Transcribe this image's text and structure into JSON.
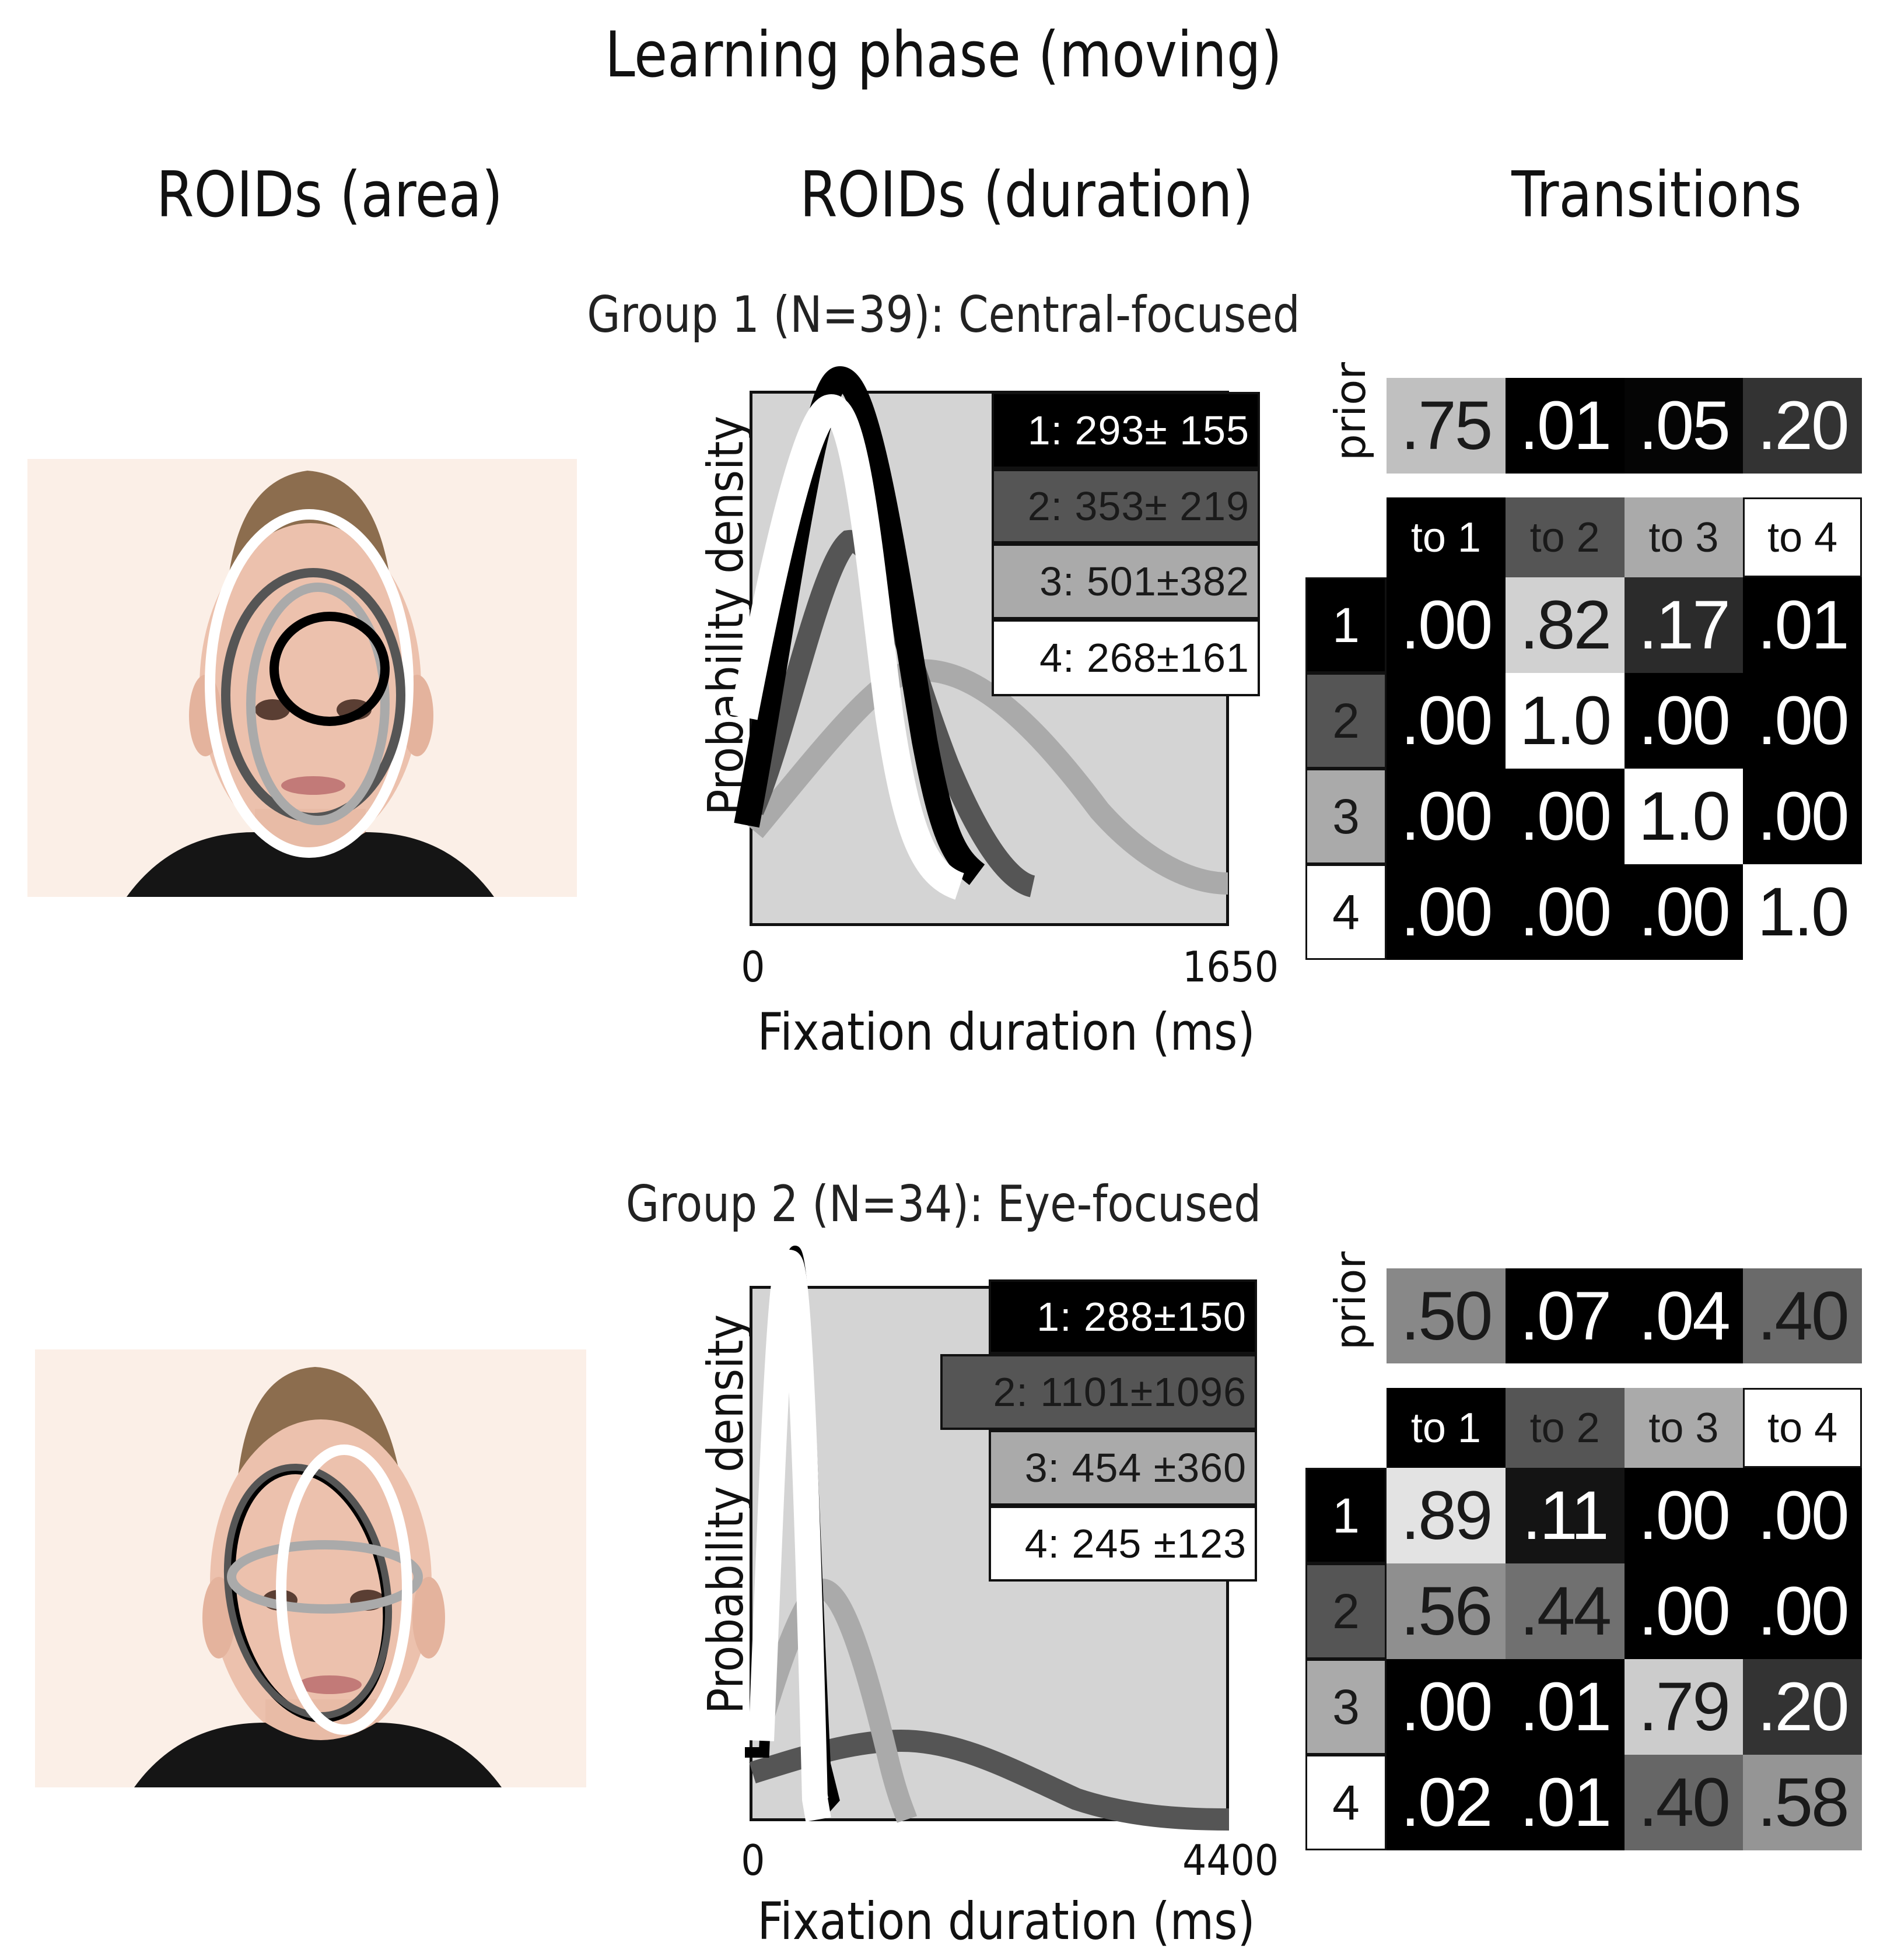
{
  "figure": {
    "title": "Learning phase (moving)",
    "columns": [
      "ROIDs (area)",
      "ROIDs (duration)",
      "Transitions"
    ]
  },
  "groups": [
    {
      "title": "Group 1 (N=39): Central-focused",
      "duration_plot": {
        "ylabel": "Probability density",
        "xlabel": "Fixation duration (ms)",
        "xmin_label": "0",
        "xmax_label": "1650",
        "legend": [
          {
            "label": "1: 293± 155",
            "bg": "#000000",
            "fg": "#ffffff"
          },
          {
            "label": "2: 353± 219",
            "bg": "#555555",
            "fg": "#1a1a1a"
          },
          {
            "label": "3: 501±382",
            "bg": "#aaaaaa",
            "fg": "#1a1a1a"
          },
          {
            "label": "4: 268±161",
            "bg": "#ffffff",
            "fg": "#111111"
          }
        ]
      },
      "transitions": {
        "prior_label": "prior",
        "prior": [
          {
            "v": ".75",
            "bg": "#c0c0c0",
            "fg": "#1a1a1a"
          },
          {
            "v": ".01",
            "bg": "#000000",
            "fg": "#ffffff"
          },
          {
            "v": ".05",
            "bg": "#050505",
            "fg": "#ffffff"
          },
          {
            "v": ".20",
            "bg": "#333333",
            "fg": "#ffffff"
          }
        ],
        "headers": [
          {
            "v": "to 1",
            "bg": "#000000",
            "fg": "#ffffff"
          },
          {
            "v": "to 2",
            "bg": "#555555",
            "fg": "#1a1a1a"
          },
          {
            "v": "to 3",
            "bg": "#aaaaaa",
            "fg": "#1a1a1a"
          },
          {
            "v": "to 4",
            "bg": "#ffffff",
            "fg": "#111111"
          }
        ],
        "rows": [
          {
            "label": {
              "v": "1",
              "bg": "#000000",
              "fg": "#ffffff"
            },
            "cells": [
              {
                "v": ".00",
                "bg": "#000000",
                "fg": "#ffffff"
              },
              {
                "v": ".82",
                "bg": "#d1d1d1",
                "fg": "#1a1a1a"
              },
              {
                "v": ".17",
                "bg": "#2b2b2b",
                "fg": "#ffffff"
              },
              {
                "v": ".01",
                "bg": "#000000",
                "fg": "#ffffff"
              }
            ]
          },
          {
            "label": {
              "v": "2",
              "bg": "#555555",
              "fg": "#1a1a1a"
            },
            "cells": [
              {
                "v": ".00",
                "bg": "#000000",
                "fg": "#ffffff"
              },
              {
                "v": "1.0",
                "bg": "#ffffff",
                "fg": "#111111"
              },
              {
                "v": ".00",
                "bg": "#000000",
                "fg": "#ffffff"
              },
              {
                "v": ".00",
                "bg": "#000000",
                "fg": "#ffffff"
              }
            ]
          },
          {
            "label": {
              "v": "3",
              "bg": "#aaaaaa",
              "fg": "#1a1a1a"
            },
            "cells": [
              {
                "v": ".00",
                "bg": "#000000",
                "fg": "#ffffff"
              },
              {
                "v": ".00",
                "bg": "#000000",
                "fg": "#ffffff"
              },
              {
                "v": "1.0",
                "bg": "#ffffff",
                "fg": "#111111"
              },
              {
                "v": ".00",
                "bg": "#000000",
                "fg": "#ffffff"
              }
            ]
          },
          {
            "label": {
              "v": "4",
              "bg": "#ffffff",
              "fg": "#111111"
            },
            "cells": [
              {
                "v": ".00",
                "bg": "#000000",
                "fg": "#ffffff"
              },
              {
                "v": ".00",
                "bg": "#000000",
                "fg": "#ffffff"
              },
              {
                "v": ".00",
                "bg": "#000000",
                "fg": "#ffffff"
              },
              {
                "v": "1.0",
                "bg": "#ffffff",
                "fg": "#111111"
              }
            ]
          }
        ]
      }
    },
    {
      "title": "Group 2 (N=34): Eye-focused",
      "duration_plot": {
        "ylabel": "Probability density",
        "xlabel": "Fixation duration (ms)",
        "xmin_label": "0",
        "xmax_label": "4400",
        "legend": [
          {
            "label": "1: 288±150",
            "bg": "#000000",
            "fg": "#ffffff"
          },
          {
            "label": "2: 1101±1096",
            "bg": "#555555",
            "fg": "#1a1a1a"
          },
          {
            "label": "3: 454 ±360",
            "bg": "#aaaaaa",
            "fg": "#1a1a1a"
          },
          {
            "label": "4: 245 ±123",
            "bg": "#ffffff",
            "fg": "#111111"
          }
        ]
      },
      "transitions": {
        "prior_label": "prior",
        "prior": [
          {
            "v": ".50",
            "bg": "#888888",
            "fg": "#1a1a1a"
          },
          {
            "v": ".07",
            "bg": "#000000",
            "fg": "#ffffff"
          },
          {
            "v": ".04",
            "bg": "#000000",
            "fg": "#ffffff"
          },
          {
            "v": ".40",
            "bg": "#6a6a6a",
            "fg": "#1a1a1a"
          }
        ],
        "headers": [
          {
            "v": "to 1",
            "bg": "#000000",
            "fg": "#ffffff"
          },
          {
            "v": "to 2",
            "bg": "#555555",
            "fg": "#1a1a1a"
          },
          {
            "v": "to 3",
            "bg": "#aaaaaa",
            "fg": "#1a1a1a"
          },
          {
            "v": "to 4",
            "bg": "#ffffff",
            "fg": "#111111"
          }
        ],
        "rows": [
          {
            "label": {
              "v": "1",
              "bg": "#000000",
              "fg": "#ffffff"
            },
            "cells": [
              {
                "v": ".89",
                "bg": "#e3e3e3",
                "fg": "#1a1a1a"
              },
              {
                "v": ".11",
                "bg": "#141414",
                "fg": "#ffffff"
              },
              {
                "v": ".00",
                "bg": "#000000",
                "fg": "#ffffff"
              },
              {
                "v": ".00",
                "bg": "#000000",
                "fg": "#ffffff"
              }
            ]
          },
          {
            "label": {
              "v": "2",
              "bg": "#555555",
              "fg": "#1a1a1a"
            },
            "cells": [
              {
                "v": ".56",
                "bg": "#8f8f8f",
                "fg": "#1a1a1a"
              },
              {
                "v": ".44",
                "bg": "#707070",
                "fg": "#1a1a1a"
              },
              {
                "v": ".00",
                "bg": "#000000",
                "fg": "#ffffff"
              },
              {
                "v": ".00",
                "bg": "#000000",
                "fg": "#ffffff"
              }
            ]
          },
          {
            "label": {
              "v": "3",
              "bg": "#aaaaaa",
              "fg": "#1a1a1a"
            },
            "cells": [
              {
                "v": ".00",
                "bg": "#000000",
                "fg": "#ffffff"
              },
              {
                "v": ".01",
                "bg": "#000000",
                "fg": "#ffffff"
              },
              {
                "v": ".79",
                "bg": "#cccccc",
                "fg": "#1a1a1a"
              },
              {
                "v": ".20",
                "bg": "#333333",
                "fg": "#ffffff"
              }
            ]
          },
          {
            "label": {
              "v": "4",
              "bg": "#ffffff",
              "fg": "#111111"
            },
            "cells": [
              {
                "v": ".02",
                "bg": "#000000",
                "fg": "#ffffff"
              },
              {
                "v": ".01",
                "bg": "#000000",
                "fg": "#ffffff"
              },
              {
                "v": ".40",
                "bg": "#666666",
                "fg": "#1a1a1a"
              },
              {
                "v": ".58",
                "bg": "#959595",
                "fg": "#1a1a1a"
              }
            ]
          }
        ]
      }
    }
  ],
  "chart_data": [
    {
      "type": "line",
      "title": "Group 1 (N=39): Central-focused — ROIDs (duration)",
      "xlabel": "Fixation duration (ms)",
      "ylabel": "Probability density",
      "xlim": [
        0,
        1650
      ],
      "x_tick_labels": [
        "0",
        "1650"
      ],
      "grid": false,
      "legend_position": "upper right",
      "series": [
        {
          "name": "1",
          "color": "#000000",
          "mean_ms": 293,
          "sd_ms": 155,
          "peak_x_ms": 250,
          "relative_peak": 1.0
        },
        {
          "name": "2",
          "color": "#555555",
          "mean_ms": 353,
          "sd_ms": 219,
          "peak_x_ms": 300,
          "relative_peak": 0.71
        },
        {
          "name": "3",
          "color": "#aaaaaa",
          "mean_ms": 501,
          "sd_ms": 382,
          "peak_x_ms": 450,
          "relative_peak": 0.41
        },
        {
          "name": "4",
          "color": "#ffffff",
          "mean_ms": 268,
          "sd_ms": 161,
          "peak_x_ms": 240,
          "relative_peak": 0.95
        }
      ]
    },
    {
      "type": "line",
      "title": "Group 2 (N=34): Eye-focused — ROIDs (duration)",
      "xlabel": "Fixation duration (ms)",
      "ylabel": "Probability density",
      "xlim": [
        0,
        4400
      ],
      "x_tick_labels": [
        "0",
        "4400"
      ],
      "grid": false,
      "legend_position": "upper right",
      "series": [
        {
          "name": "1",
          "color": "#000000",
          "mean_ms": 288,
          "sd_ms": 150,
          "relative_peak": 1.0
        },
        {
          "name": "2",
          "color": "#555555",
          "mean_ms": 1101,
          "sd_ms": 1096,
          "relative_peak": 0.1
        },
        {
          "name": "3",
          "color": "#aaaaaa",
          "mean_ms": 454,
          "sd_ms": 360,
          "relative_peak": 0.35
        },
        {
          "name": "4",
          "color": "#ffffff",
          "mean_ms": 245,
          "sd_ms": 123,
          "relative_peak": 1.0
        }
      ]
    },
    {
      "type": "heatmap",
      "title": "Group 1 Transitions",
      "prior": {
        "categories": [
          "1",
          "2",
          "3",
          "4"
        ],
        "values": [
          0.75,
          0.01,
          0.05,
          0.2
        ]
      },
      "row_labels": [
        "1",
        "2",
        "3",
        "4"
      ],
      "col_labels": [
        "to 1",
        "to 2",
        "to 3",
        "to 4"
      ],
      "values": [
        [
          0.0,
          0.82,
          0.17,
          0.01
        ],
        [
          0.0,
          1.0,
          0.0,
          0.0
        ],
        [
          0.0,
          0.0,
          1.0,
          0.0
        ],
        [
          0.0,
          0.0,
          0.0,
          1.0
        ]
      ]
    },
    {
      "type": "heatmap",
      "title": "Group 2 Transitions",
      "prior": {
        "categories": [
          "1",
          "2",
          "3",
          "4"
        ],
        "values": [
          0.5,
          0.07,
          0.04,
          0.4
        ]
      },
      "row_labels": [
        "1",
        "2",
        "3",
        "4"
      ],
      "col_labels": [
        "to 1",
        "to 2",
        "to 3",
        "to 4"
      ],
      "values": [
        [
          0.89,
          0.11,
          0.0,
          0.0
        ],
        [
          0.56,
          0.44,
          0.0,
          0.0
        ],
        [
          0.0,
          0.01,
          0.79,
          0.2
        ],
        [
          0.02,
          0.01,
          0.4,
          0.58
        ]
      ]
    }
  ]
}
